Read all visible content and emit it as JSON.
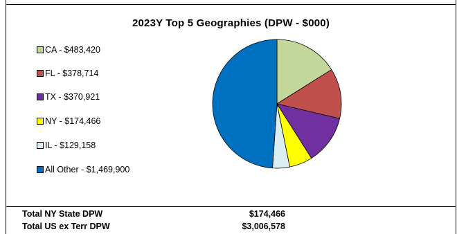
{
  "chart_data": {
    "type": "pie",
    "title": "2023Y  Top 5 Geographies (DPW - $000)",
    "categories": [
      "CA",
      "FL",
      "TX",
      "NY",
      "IL",
      "All Other"
    ],
    "values": [
      483420,
      378714,
      370921,
      174466,
      129158,
      1469900
    ],
    "legend_labels": [
      "CA - $483,420",
      "FL - $378,714",
      "TX - $370,921",
      "NY - $174,466",
      "IL - $129,158",
      "All Other - $1,469,900"
    ],
    "colors": [
      "#c4d79b",
      "#c0504d",
      "#7030a0",
      "#ffff00",
      "#dbeef4",
      "#0070c0"
    ],
    "legend_position": "left",
    "start_angle": "12 o'clock",
    "direction": "clockwise"
  },
  "totals": [
    {
      "label": "Total NY State DPW",
      "value": "$174,466"
    },
    {
      "label": "Total US ex Terr DPW",
      "value": "$3,006,578"
    }
  ]
}
